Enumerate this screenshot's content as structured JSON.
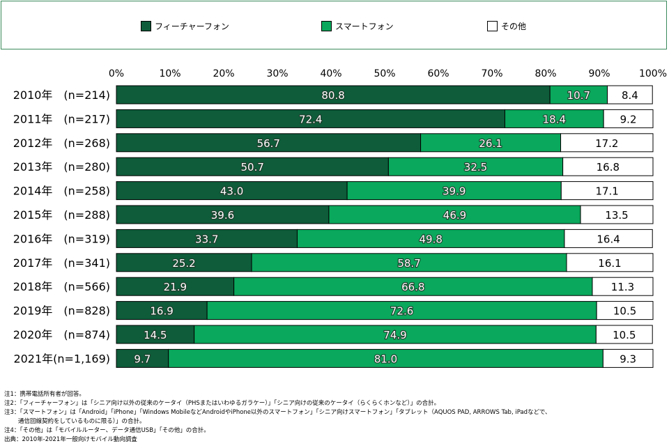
{
  "legend": {
    "items": [
      {
        "label": "フィーチャーフォン",
        "color": "#0e5c3a"
      },
      {
        "label": "スマートフォン",
        "color": "#0aa85c"
      },
      {
        "label": "その他",
        "color": "#ffffff"
      }
    ]
  },
  "chart_data": {
    "type": "bar",
    "orientation": "horizontal",
    "stacked": true,
    "xlim": [
      0,
      100
    ],
    "x_ticks": [
      "0%",
      "10%",
      "20%",
      "30%",
      "40%",
      "50%",
      "60%",
      "70%",
      "80%",
      "90%",
      "100%"
    ],
    "categories": [
      "2010年　(n=214)",
      "2011年　(n=217)",
      "2012年　(n=268)",
      "2013年　(n=280)",
      "2014年　(n=258)",
      "2015年　(n=288)",
      "2016年　(n=319)",
      "2017年　(n=341)",
      "2018年　(n=566)",
      "2019年　(n=828)",
      "2020年　(n=874)",
      "2021年(n=1,169)"
    ],
    "series": [
      {
        "name": "フィーチャーフォン",
        "color": "#0e5c3a",
        "values": [
          80.8,
          72.4,
          56.7,
          50.7,
          43.0,
          39.6,
          33.7,
          25.2,
          21.9,
          16.9,
          14.5,
          9.7
        ],
        "labels": [
          "80.8",
          "72.4",
          "56.7",
          "50.7",
          "43.0",
          "39.6",
          "33.7",
          "25.2",
          "21.9",
          "16.9",
          "14.5",
          "9.7"
        ]
      },
      {
        "name": "スマートフォン",
        "color": "#0aa85c",
        "values": [
          10.7,
          18.4,
          26.1,
          32.5,
          39.9,
          46.9,
          49.8,
          58.7,
          66.8,
          72.6,
          74.9,
          81.0
        ],
        "labels": [
          "10.7",
          "18.4",
          "26.1",
          "32.5",
          "39.9",
          "46.9",
          "49.8",
          "58.7",
          "66.8",
          "72.6",
          "74.9",
          "81.0"
        ]
      },
      {
        "name": "その他",
        "color": "#ffffff",
        "values": [
          8.4,
          9.2,
          17.2,
          16.8,
          17.1,
          13.5,
          16.4,
          16.1,
          11.3,
          10.5,
          10.5,
          9.3
        ],
        "labels": [
          "8.4",
          "9.2",
          "17.2",
          "16.8",
          "17.1",
          "13.5",
          "16.4",
          "16.1",
          "11.3",
          "10.5",
          "10.5",
          "9.3"
        ]
      }
    ]
  },
  "notes": [
    "注1：携帯電話所有者が回答。",
    "注2：「フィーチャーフォン」は「シニア向け以外の従来のケータイ（PHSまたはいわゆるガラケー）」「シニア向けの従来のケータイ（らくらくホンなど）」の合計。",
    "注3：「スマートフォン」は「Android」「iPhone」「Windows MobileなどAndroidやiPhone以外のスマートフォン」「シニア向けスマートフォン」「タブレット（AQUOS PAD, ARROWS Tab, iPadなどで、",
    "通信回線契約をしているものに限る）」の合計。",
    "注4：「その他」は「モバイルルーター、データ通信USB」「その他」の合計。",
    "出典：2010年-2021年一般向けモバイル動向調査"
  ]
}
